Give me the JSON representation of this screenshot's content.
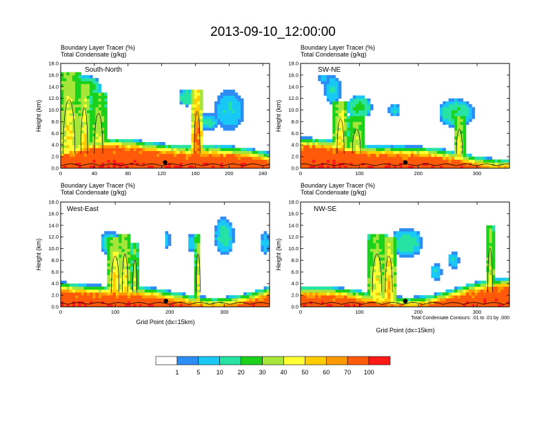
{
  "title": "2013-09-10_12:00:00",
  "colors": {
    "bins": [
      "#ffffff",
      "#2e8cf5",
      "#19c8f5",
      "#27e3a3",
      "#1bd11b",
      "#a6e63a",
      "#ffff33",
      "#ffcc00",
      "#ff9900",
      "#ff5a0a",
      "#ff1a1a"
    ]
  },
  "chart_data": [
    {
      "type": "heatmap",
      "panel_label": "South-North",
      "title_line1": "Boundary Layer Tracer   (%)",
      "title_line2": "Total Condensate   (g/kg)",
      "ylabel": "Height (km)",
      "xlabel": "",
      "xlim": [
        0,
        248
      ],
      "ylim": [
        0,
        18
      ],
      "xticks": [
        0,
        40,
        80,
        120,
        160,
        200,
        240
      ],
      "yticks": [
        0.0,
        2.0,
        4.0,
        6.0,
        8.0,
        10.0,
        12.0,
        14.0,
        16.0,
        18.0
      ],
      "marker": {
        "x": 124,
        "y": 1.0
      },
      "features": [
        {
          "x": 10,
          "w": 14,
          "h": 16.5,
          "v": 48
        },
        {
          "x": 28,
          "w": 8,
          "h": 14.5,
          "v": 55
        },
        {
          "x": 45,
          "w": 10,
          "h": 13.0,
          "v": 40
        },
        {
          "x": 162,
          "w": 7,
          "h": 13.5,
          "v": 85
        }
      ],
      "anvils": [
        {
          "x": 30,
          "y": 13.8,
          "w": 18,
          "h": 2.2,
          "v": 30
        },
        {
          "x": 150,
          "y": 12.2,
          "w": 10,
          "h": 1.5,
          "v": 18
        },
        {
          "x": 200,
          "y": 10.0,
          "w": 18,
          "h": 3.5,
          "v": 8
        },
        {
          "x": 175,
          "y": 8.0,
          "w": 14,
          "h": 1.5,
          "v": 10
        }
      ]
    },
    {
      "type": "heatmap",
      "panel_label": "SW-NE",
      "title_line1": "Boundary Layer Tracer   (%)",
      "title_line2": "Total Condensate   (g/kg)",
      "ylabel": "Height (km)",
      "xlabel": "",
      "xlim": [
        0,
        355
      ],
      "ylim": [
        0,
        18
      ],
      "xticks": [
        0,
        100,
        200,
        300
      ],
      "yticks": [
        0.0,
        2.0,
        4.0,
        6.0,
        8.0,
        10.0,
        12.0,
        14.0,
        16.0,
        18.0
      ],
      "marker": {
        "x": 178,
        "y": 1.0
      },
      "features": [
        {
          "x": 68,
          "w": 12,
          "h": 11.5,
          "v": 55
        },
        {
          "x": 95,
          "w": 14,
          "h": 9.0,
          "v": 40
        },
        {
          "x": 270,
          "w": 10,
          "h": 9.0,
          "v": 45
        }
      ],
      "anvils": [
        {
          "x": 55,
          "y": 13.5,
          "w": 14,
          "h": 2.5,
          "v": 8
        },
        {
          "x": 100,
          "y": 10.5,
          "w": 22,
          "h": 2.0,
          "v": 20
        },
        {
          "x": 160,
          "y": 10.0,
          "w": 10,
          "h": 1.0,
          "v": 10
        },
        {
          "x": 265,
          "y": 9.5,
          "w": 30,
          "h": 2.5,
          "v": 18
        },
        {
          "x": 40,
          "y": 15.4,
          "w": 10,
          "h": 0.8,
          "v": 6
        }
      ]
    },
    {
      "type": "heatmap",
      "panel_label": "West-East",
      "title_line1": "Boundary Layer Tracer   (%)",
      "title_line2": "Total Condensate   (g/kg)",
      "ylabel": "Height (km)",
      "xlabel": "Grid Point (dx=15km)",
      "xlim": [
        0,
        383
      ],
      "ylim": [
        0,
        18
      ],
      "xticks": [
        0,
        100,
        200,
        300
      ],
      "yticks": [
        0.0,
        2.0,
        4.0,
        6.0,
        8.0,
        10.0,
        12.0,
        14.0,
        16.0,
        18.0
      ],
      "marker": {
        "x": 193,
        "y": 1.0
      },
      "features": [
        {
          "x": 100,
          "w": 14,
          "h": 12.0,
          "v": 55
        },
        {
          "x": 118,
          "w": 10,
          "h": 12.5,
          "v": 50
        },
        {
          "x": 136,
          "w": 6,
          "h": 11.0,
          "v": 35
        },
        {
          "x": 252,
          "w": 5,
          "h": 12.5,
          "v": 40
        }
      ],
      "anvils": [
        {
          "x": 90,
          "y": 11.0,
          "w": 18,
          "h": 2.0,
          "v": 14
        },
        {
          "x": 300,
          "y": 12.2,
          "w": 18,
          "h": 3.2,
          "v": 12
        },
        {
          "x": 195,
          "y": 11.5,
          "w": 6,
          "h": 1.5,
          "v": 8
        },
        {
          "x": 240,
          "y": 11.0,
          "w": 6,
          "h": 1.5,
          "v": 8
        },
        {
          "x": 375,
          "y": 11.0,
          "w": 8,
          "h": 2.0,
          "v": 6
        }
      ]
    },
    {
      "type": "heatmap",
      "panel_label": "NW-SE",
      "title_line1": "Boundary Layer Tracer   (%)",
      "title_line2": "Total Condensate   (g/kg)",
      "ylabel": "Height (km)",
      "xlabel": "Grid Point (dx=15km)",
      "xlim": [
        0,
        355
      ],
      "ylim": [
        0,
        18
      ],
      "xticks": [
        0,
        100,
        200,
        300
      ],
      "yticks": [
        0.0,
        2.0,
        4.0,
        6.0,
        8.0,
        10.0,
        12.0,
        14.0,
        16.0,
        18.0
      ],
      "marker": {
        "x": 178,
        "y": 1.0
      },
      "features": [
        {
          "x": 130,
          "w": 16,
          "h": 12.5,
          "v": 45
        },
        {
          "x": 150,
          "w": 12,
          "h": 12.0,
          "v": 55
        },
        {
          "x": 322,
          "w": 8,
          "h": 14.0,
          "v": 40
        }
      ],
      "anvils": [
        {
          "x": 180,
          "y": 11.0,
          "w": 28,
          "h": 2.5,
          "v": 14
        },
        {
          "x": 230,
          "y": 6.0,
          "w": 10,
          "h": 1.5,
          "v": 8
        },
        {
          "x": 260,
          "y": 8.0,
          "w": 10,
          "h": 1.5,
          "v": 8
        }
      ]
    }
  ],
  "colorbar": {
    "labels": [
      "1",
      "5",
      "10",
      "20",
      "30",
      "40",
      "50",
      "60",
      "70",
      "100"
    ]
  },
  "contour_note": "Total Condensate Contours: .01 to .01 by .000"
}
